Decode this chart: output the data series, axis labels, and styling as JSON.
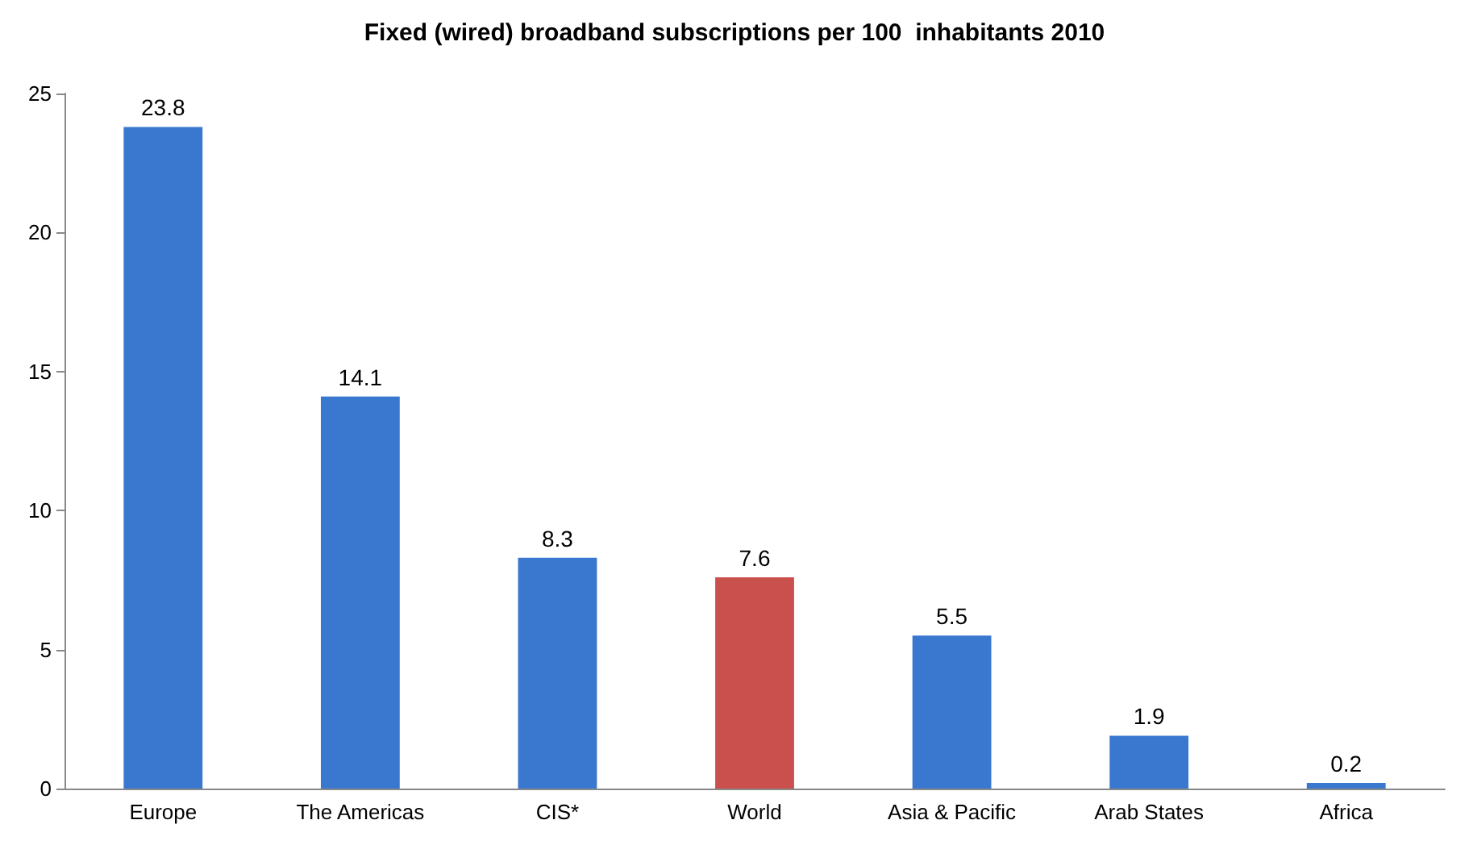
{
  "chart_data": {
    "type": "bar",
    "title": "Fixed (wired) broadband subscriptions per 100  inhabitants 2010",
    "categories": [
      "Europe",
      "The Americas",
      "CIS*",
      "World",
      "Asia & Pacific",
      "Arab States",
      "Africa"
    ],
    "values": [
      23.8,
      14.1,
      8.3,
      7.6,
      5.5,
      1.9,
      0.2
    ],
    "colors": [
      "#3a78d0",
      "#3a78d0",
      "#3a78d0",
      "#c9504c",
      "#3a78d0",
      "#3a78d0",
      "#3a78d0"
    ],
    "ylim": [
      0,
      25
    ],
    "yticks": [
      0,
      5,
      10,
      15,
      20,
      25
    ],
    "grid": false,
    "data_labels": true
  }
}
